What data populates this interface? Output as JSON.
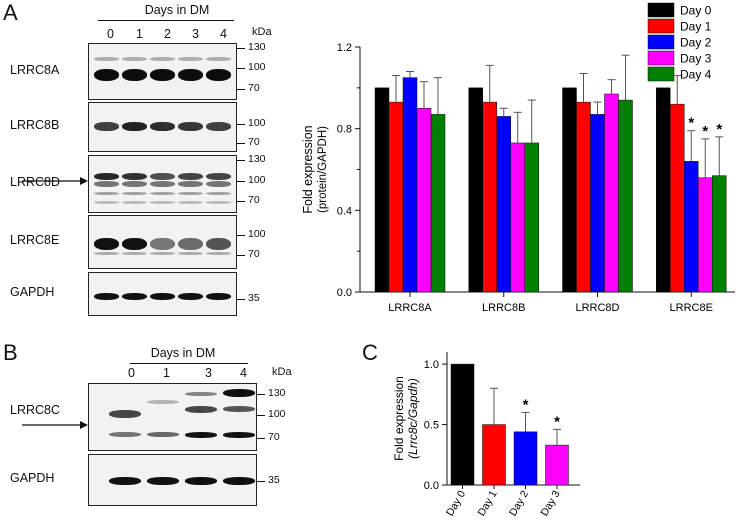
{
  "panels": {
    "A": "A",
    "B": "B",
    "C": "C"
  },
  "blotA": {
    "header": "Days in DM",
    "kda": "kDa",
    "lanes": [
      "0",
      "1",
      "2",
      "3",
      "4"
    ],
    "rows": [
      {
        "name": "LRRC8A",
        "markers": [
          "130",
          "100",
          "70"
        ]
      },
      {
        "name": "LRRC8B",
        "markers": [
          "100",
          "70"
        ]
      },
      {
        "name": "LRRC8D",
        "markers": [
          "130",
          "100",
          "70"
        ]
      },
      {
        "name": "LRRC8E",
        "markers": [
          "100",
          "70"
        ]
      },
      {
        "name": "GAPDH",
        "markers": [
          "35"
        ]
      }
    ]
  },
  "blotB": {
    "header": "Days in DM",
    "kda": "kDa",
    "lanes": [
      "0",
      "1",
      "3",
      "4"
    ],
    "rows": [
      {
        "name": "LRRC8C",
        "markers": [
          "130",
          "100",
          "70"
        ]
      },
      {
        "name": "GAPDH",
        "markers": [
          "35"
        ]
      }
    ]
  },
  "colors": {
    "day0": "#000000",
    "day1": "#ff0000",
    "day2": "#0000ff",
    "day3": "#ff00ff",
    "day4": "#008000"
  },
  "chart_data": [
    {
      "type": "bar",
      "title": "",
      "ylabel": "Fold expression\n(protein/GAPDH)",
      "xlabel": "",
      "categories": [
        "LRRC8A",
        "LRRC8B",
        "LRRC8D",
        "LRRC8E"
      ],
      "ylim": [
        0.0,
        1.2
      ],
      "yticks": [
        "0.0",
        "0.4",
        "0.8",
        "1.2"
      ],
      "legend_position": "top-right",
      "series": [
        {
          "name": "Day 0",
          "color": "#000000",
          "values": [
            1.0,
            1.0,
            1.0,
            1.0
          ],
          "errors": [
            0,
            0,
            0,
            0
          ]
        },
        {
          "name": "Day 1",
          "color": "#ff0000",
          "values": [
            0.93,
            0.93,
            0.93,
            0.92
          ],
          "errors": [
            0.13,
            0.18,
            0.14,
            0.14
          ]
        },
        {
          "name": "Day 2",
          "color": "#0000ff",
          "values": [
            1.05,
            0.86,
            0.87,
            0.64
          ],
          "errors": [
            0.03,
            0.04,
            0.06,
            0.15
          ]
        },
        {
          "name": "Day 3",
          "color": "#ff00ff",
          "values": [
            0.9,
            0.73,
            0.97,
            0.56
          ],
          "errors": [
            0.13,
            0.15,
            0.07,
            0.19
          ]
        },
        {
          "name": "Day 4",
          "color": "#008000",
          "values": [
            0.87,
            0.73,
            0.94,
            0.57
          ],
          "errors": [
            0.18,
            0.21,
            0.22,
            0.19
          ]
        }
      ],
      "significance": {
        "LRRC8E": [
          "Day 2",
          "Day 3",
          "Day 4"
        ]
      },
      "sig_mark": "*"
    },
    {
      "type": "bar",
      "title": "",
      "ylabel": "Fold expression\n(Lrrc8c/Gapdh)",
      "xlabel": "",
      "categories": [
        "Day 0",
        "Day 1",
        "Day 2",
        "Day 3"
      ],
      "colors": [
        "#000000",
        "#ff0000",
        "#0000ff",
        "#ff00ff"
      ],
      "values": [
        1.0,
        0.5,
        0.44,
        0.33
      ],
      "errors": [
        0,
        0.3,
        0.16,
        0.13
      ],
      "ylim": [
        0.0,
        1.1
      ],
      "yticks": [
        "0.0",
        "0.5",
        "1.0"
      ],
      "significance": [
        "Day 2",
        "Day 3"
      ],
      "sig_mark": "*"
    }
  ]
}
